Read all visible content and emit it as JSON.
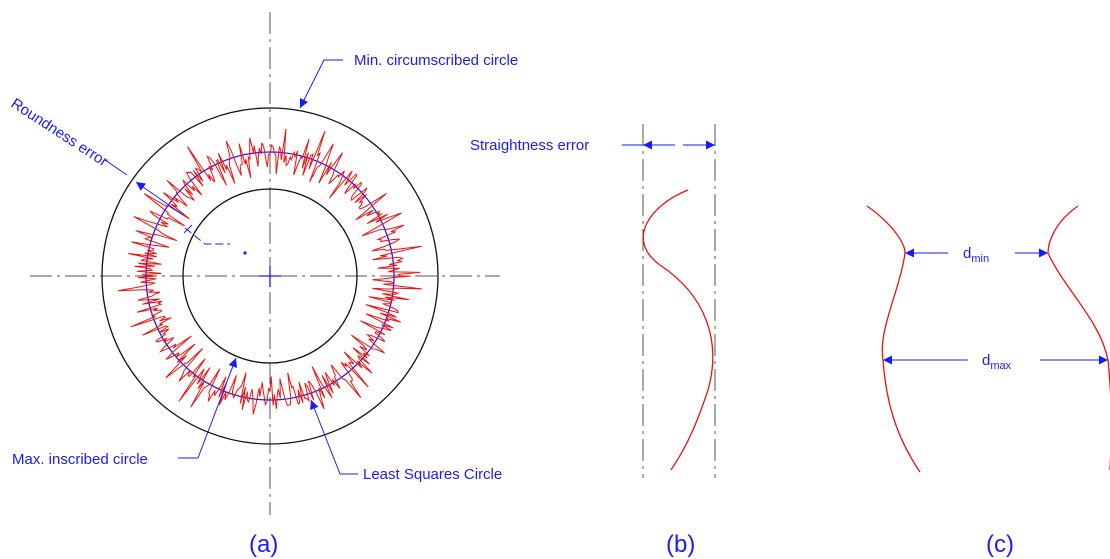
{
  "colors": {
    "annotation": "#1a1aff",
    "profile": "#ee1111",
    "circle": "#111111",
    "centerline": "#555555"
  },
  "panel_a": {
    "label": "(a)",
    "min_circumscribed": "Min. circumscribed circle",
    "roundness_error": "Roundness error",
    "max_inscribed": "Max. inscribed circle",
    "least_squares": "Least Squares Circle"
  },
  "panel_b": {
    "label": "(b)",
    "straightness_error": "Straightness error"
  },
  "panel_c": {
    "label": "(c)",
    "dmin_base": "d",
    "dmin_sub": "min",
    "dmax_base": "d",
    "dmax_sub": "max"
  },
  "icons": [
    "arrowhead-icon"
  ]
}
